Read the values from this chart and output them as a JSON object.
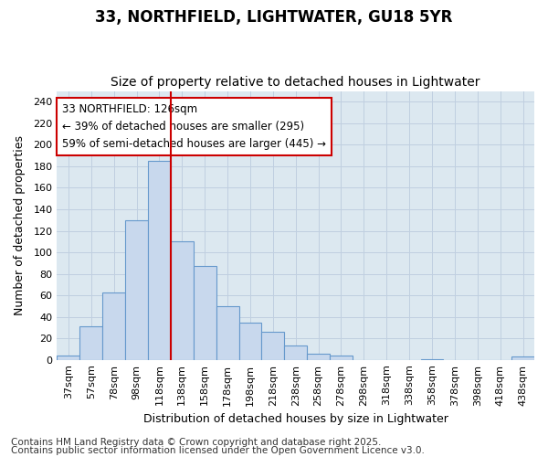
{
  "title1": "33, NORTHFIELD, LIGHTWATER, GU18 5YR",
  "title2": "Size of property relative to detached houses in Lightwater",
  "xlabel": "Distribution of detached houses by size in Lightwater",
  "ylabel": "Number of detached properties",
  "categories": [
    "37sqm",
    "57sqm",
    "78sqm",
    "98sqm",
    "118sqm",
    "138sqm",
    "158sqm",
    "178sqm",
    "198sqm",
    "218sqm",
    "238sqm",
    "258sqm",
    "278sqm",
    "298sqm",
    "318sqm",
    "338sqm",
    "358sqm",
    "378sqm",
    "398sqm",
    "418sqm",
    "438sqm"
  ],
  "values": [
    4,
    31,
    63,
    130,
    185,
    110,
    87,
    50,
    35,
    26,
    13,
    6,
    4,
    0,
    0,
    0,
    1,
    0,
    0,
    0,
    3
  ],
  "bar_color": "#c8d8ed",
  "bar_edge_color": "#6699cc",
  "bar_width": 1.0,
  "vline_x_idx": 4,
  "vline_color": "#cc0000",
  "annotation_text": "33 NORTHFIELD: 126sqm\n← 39% of detached houses are smaller (295)\n59% of semi-detached houses are larger (445) →",
  "annotation_box_color": "white",
  "annotation_box_edge": "#cc0000",
  "ylim": [
    0,
    250
  ],
  "yticks": [
    0,
    20,
    40,
    60,
    80,
    100,
    120,
    140,
    160,
    180,
    200,
    220,
    240
  ],
  "grid_color": "#c0cfe0",
  "bg_color": "#dce8f0",
  "outer_bg": "#ffffff",
  "footer1": "Contains HM Land Registry data © Crown copyright and database right 2025.",
  "footer2": "Contains public sector information licensed under the Open Government Licence v3.0.",
  "title1_fontsize": 12,
  "title2_fontsize": 10,
  "xlabel_fontsize": 9,
  "ylabel_fontsize": 9,
  "tick_fontsize": 8,
  "annot_fontsize": 8.5,
  "footer_fontsize": 7.5
}
